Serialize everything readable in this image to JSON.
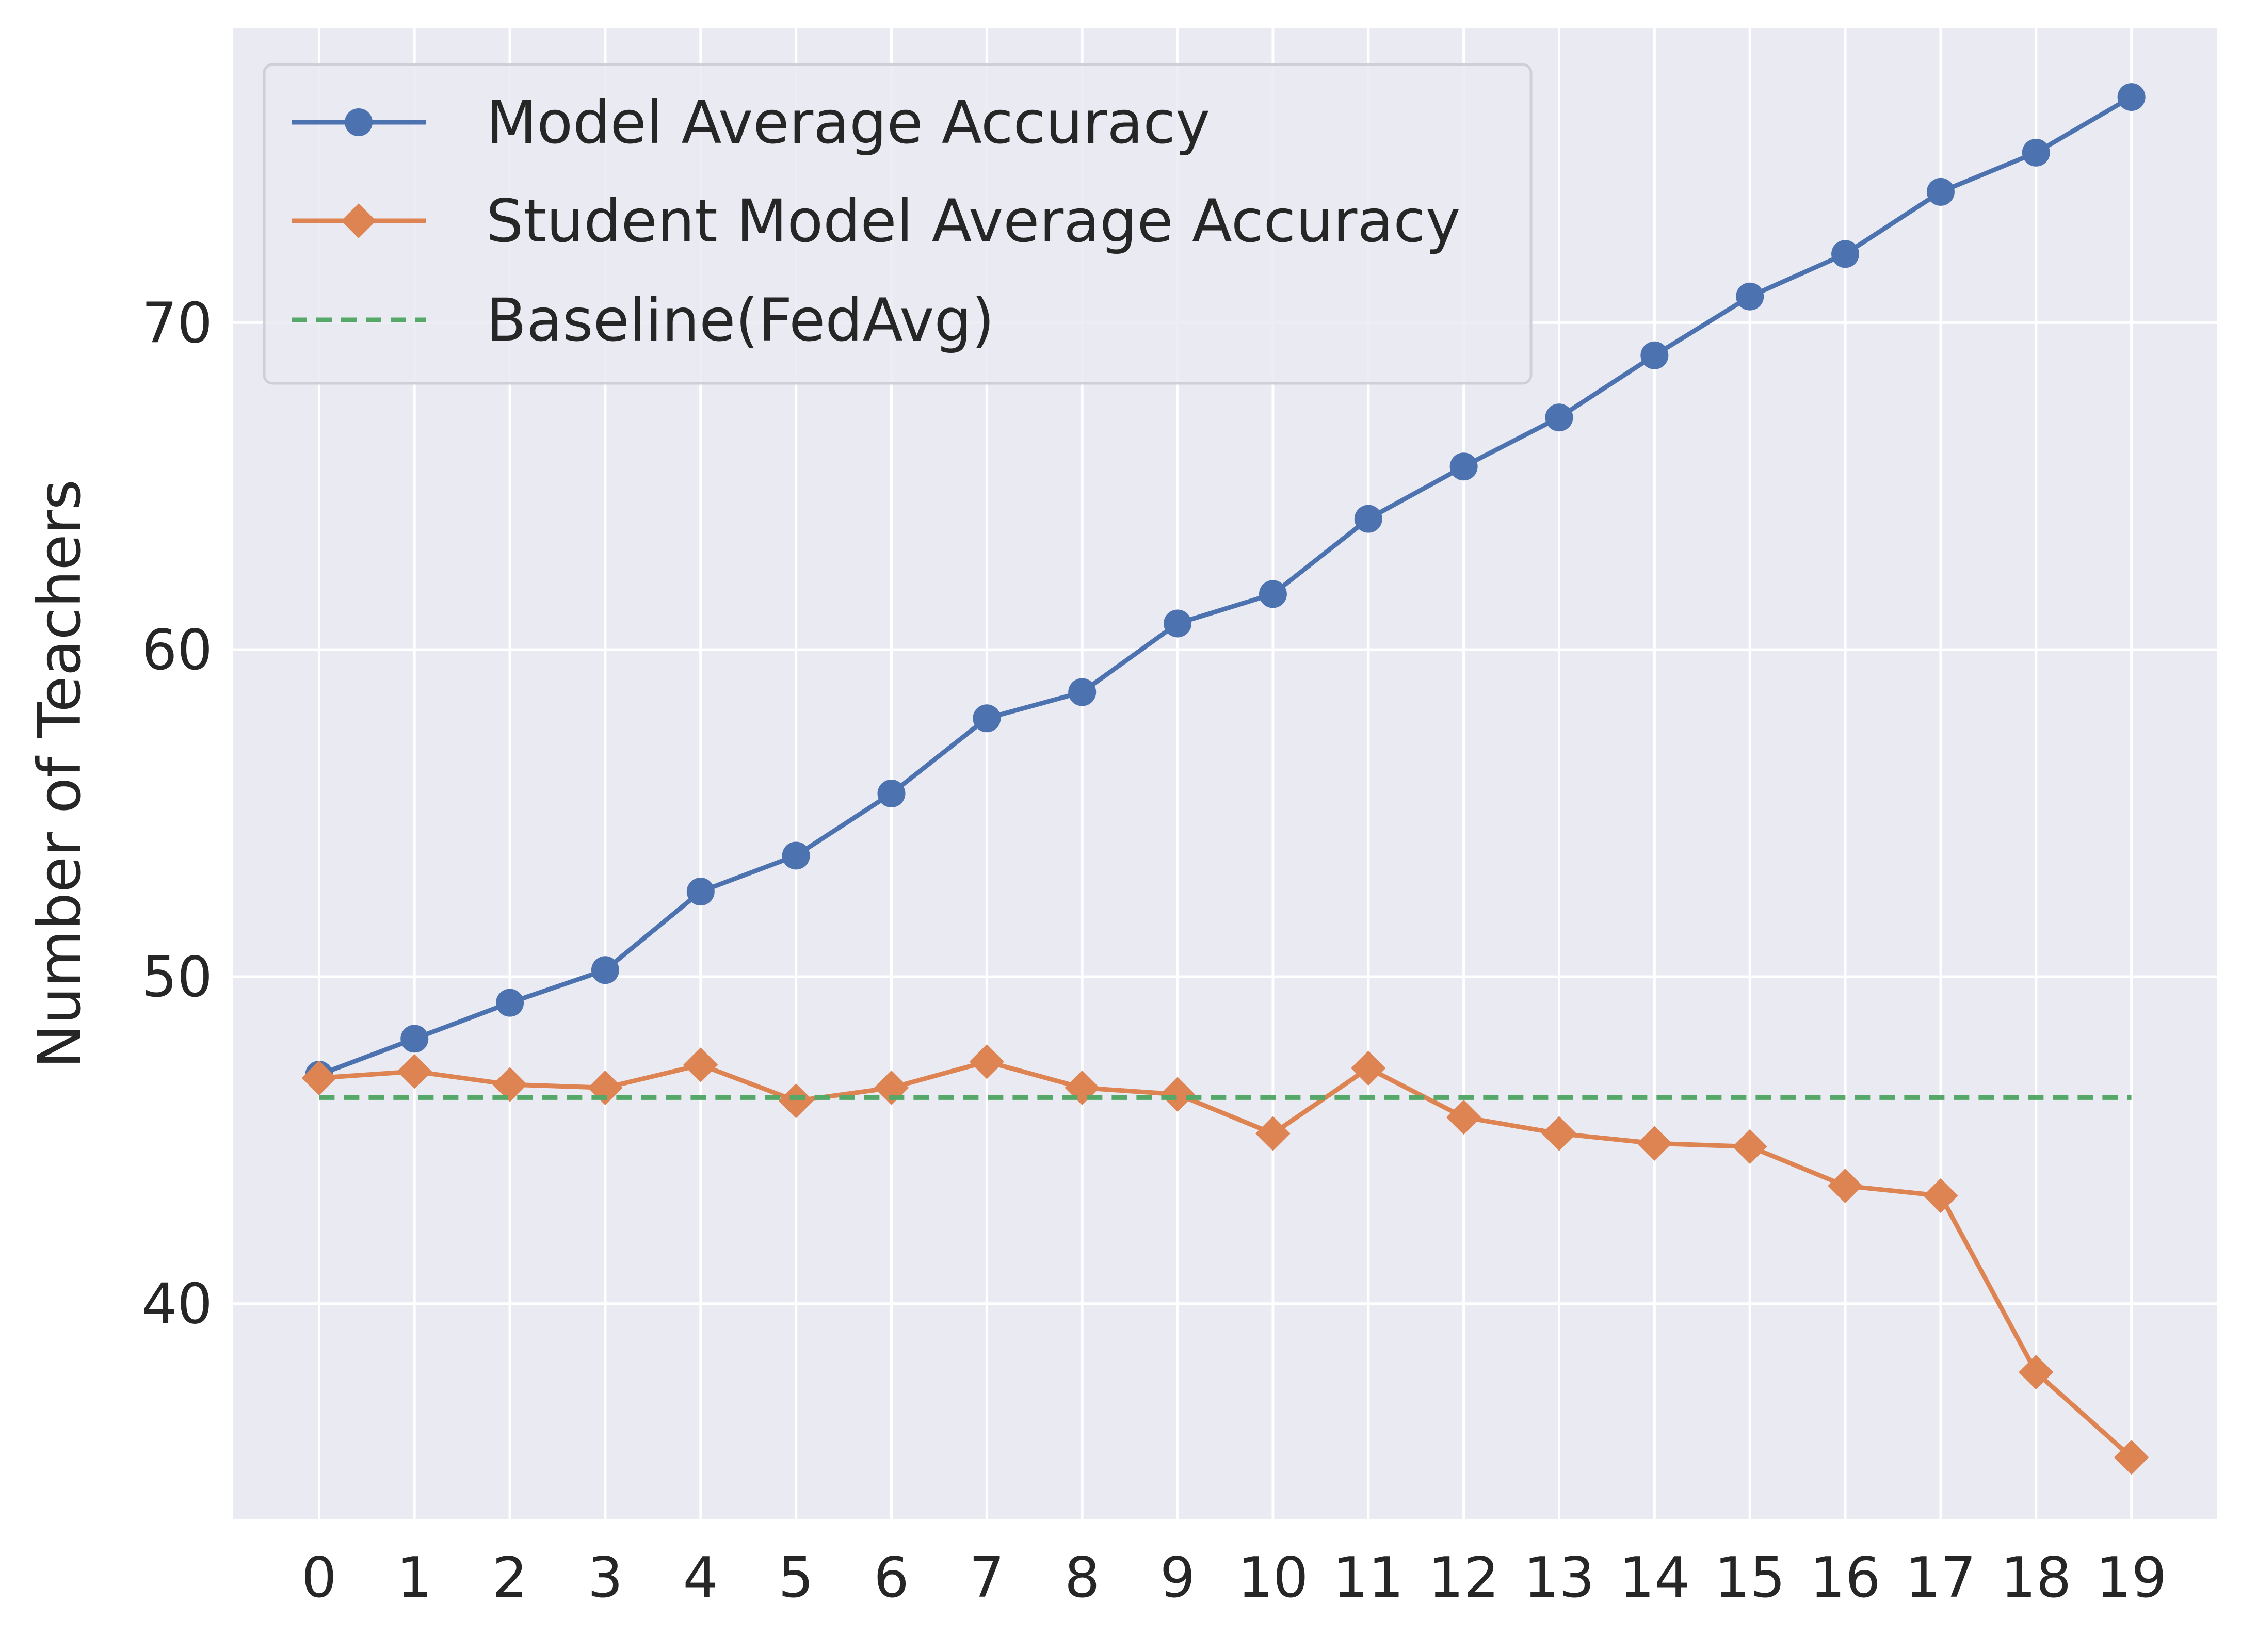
{
  "chart_data": {
    "type": "line",
    "title": "",
    "xlabel": "",
    "ylabel": "Number of Teachers",
    "x": [
      0,
      1,
      2,
      3,
      4,
      5,
      6,
      7,
      8,
      9,
      10,
      11,
      12,
      13,
      14,
      15,
      16,
      17,
      18,
      19
    ],
    "x_tick_labels": [
      "0",
      "1",
      "2",
      "3",
      "4",
      "5",
      "6",
      "7",
      "8",
      "9",
      "10",
      "11",
      "12",
      "13",
      "14",
      "15",
      "16",
      "17",
      "18",
      "19"
    ],
    "y_ticks": [
      40,
      50,
      60,
      70
    ],
    "y_tick_labels": [
      "40",
      "50",
      "60",
      "70"
    ],
    "ylim": [
      33.4,
      79.0
    ],
    "xlim": [
      -0.9,
      19.9
    ],
    "grid": true,
    "legend_position": "upper-left",
    "background_color": "#EAEAF2",
    "grid_color": "#FFFFFF",
    "series": [
      {
        "name": "Model Average Accuracy",
        "color": "#4C72B0",
        "marker": "circle",
        "line_style": "solid",
        "values": [
          47.0,
          48.1,
          49.2,
          50.2,
          52.6,
          53.7,
          55.6,
          57.9,
          58.7,
          60.8,
          61.7,
          64.0,
          65.6,
          67.1,
          69.0,
          70.8,
          72.1,
          74.0,
          75.2,
          76.9
        ]
      },
      {
        "name": "Student Model Average Accuracy",
        "color": "#DD8452",
        "marker": "diamond",
        "line_style": "solid",
        "values": [
          46.9,
          47.1,
          46.7,
          46.6,
          47.3,
          46.2,
          46.6,
          47.4,
          46.6,
          46.4,
          45.2,
          47.2,
          45.7,
          45.2,
          44.9,
          44.8,
          43.6,
          43.3,
          37.9,
          35.3
        ]
      },
      {
        "name": "Baseline(FedAvg)",
        "color": "#55A868",
        "marker": "none",
        "line_style": "dashed",
        "values": [
          46.3,
          46.3,
          46.3,
          46.3,
          46.3,
          46.3,
          46.3,
          46.3,
          46.3,
          46.3,
          46.3,
          46.3,
          46.3,
          46.3,
          46.3,
          46.3,
          46.3,
          46.3,
          46.3,
          46.3
        ]
      }
    ]
  }
}
